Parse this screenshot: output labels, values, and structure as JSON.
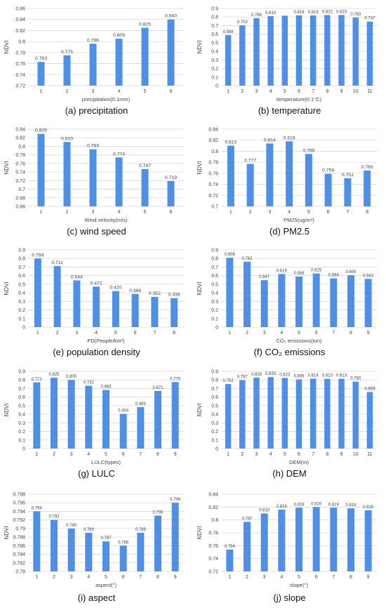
{
  "colors": {
    "bar": "#4f8fe6",
    "grid": "#d9d9d9",
    "text": "#444444"
  },
  "chart_data": [
    {
      "type": "bar",
      "caption": "(a) precipitation",
      "ylabel": "NDVI",
      "xlabel": "precipitation(0.1mm)",
      "categories": [
        "1",
        "2",
        "3",
        "4",
        "5",
        "6"
      ],
      "values": [
        0.763,
        0.775,
        0.796,
        0.805,
        0.825,
        0.84
      ],
      "value_labels": [
        "0.763",
        "0.775",
        "0.796",
        "0.805",
        "0.825",
        "0.840"
      ],
      "ylim": [
        0.72,
        0.86
      ],
      "yticks": [
        "0.72",
        "0.74",
        "0.76",
        "0.78",
        "0.8",
        "0.82",
        "0.84",
        "0.86"
      ],
      "grid": true
    },
    {
      "type": "bar",
      "caption": "(b) temperature",
      "ylabel": "NDVI",
      "xlabel": "temperature(0.1°C)",
      "categories": [
        "1",
        "2",
        "3",
        "4",
        "5",
        "6",
        "7",
        "8",
        "9",
        "10",
        "11"
      ],
      "values": [
        0.588,
        0.703,
        0.786,
        0.81,
        0.815,
        0.819,
        0.819,
        0.822,
        0.823,
        0.793,
        0.747
      ],
      "value_labels": [
        "0.588",
        "0.703",
        "0.786",
        "0.810",
        "",
        "0.819",
        "0.819",
        "0.822",
        "0.823",
        "0.793",
        "0.747"
      ],
      "ylim": [
        0,
        0.9
      ],
      "yticks": [
        "0",
        "0.1",
        "0.2",
        "0.3",
        "0.4",
        "0.5",
        "0.6",
        "0.7",
        "0.8",
        "0.9"
      ],
      "grid": true
    },
    {
      "type": "bar",
      "caption": "(c) wind speed",
      "ylabel": "NDVI",
      "xlabel": "Wind velocity(m/s)",
      "categories": [
        "1",
        "2",
        "3",
        "4",
        "5",
        "6"
      ],
      "values": [
        0.829,
        0.81,
        0.793,
        0.774,
        0.747,
        0.719
      ],
      "value_labels": [
        "0.829",
        "0.810",
        "0.793",
        "0.774",
        "0.747",
        "0.719"
      ],
      "ylim": [
        0.66,
        0.84
      ],
      "yticks": [
        "0.66",
        "0.68",
        "0.7",
        "0.72",
        "0.74",
        "0.76",
        "0.78",
        "0.8",
        "0.82",
        "0.84"
      ],
      "grid": true
    },
    {
      "type": "bar",
      "caption": "(d) PM2.5",
      "ylabel": "NDVI",
      "xlabel": "PM25(ug/m³)",
      "categories": [
        "1",
        "2",
        "3",
        "4",
        "5",
        "6",
        "7",
        "8"
      ],
      "values": [
        0.81,
        0.777,
        0.814,
        0.818,
        0.795,
        0.759,
        0.751,
        0.765
      ],
      "value_labels": [
        "0.810",
        "0.777",
        "0.814",
        "0.818",
        "0.795",
        "0.759",
        "0.751",
        "0.765"
      ],
      "ylim": [
        0.7,
        0.84
      ],
      "yticks": [
        "0.7",
        "0.72",
        "0.74",
        "0.76",
        "0.78",
        "0.8",
        "0.82",
        "0.84"
      ],
      "grid": true
    },
    {
      "type": "bar",
      "caption": "(e) population density",
      "ylabel": "NDVI",
      "xlabel": "PD(People/km²)",
      "categories": [
        "1",
        "2",
        "3",
        "4",
        "5",
        "6",
        "7",
        "8"
      ],
      "values": [
        0.799,
        0.711,
        0.544,
        0.472,
        0.42,
        0.386,
        0.352,
        0.338
      ],
      "value_labels": [
        "0.799",
        "0.711",
        "0.544",
        "0.472",
        "0.420",
        "0.386",
        "0.352",
        "0.338"
      ],
      "ylim": [
        0,
        0.9
      ],
      "yticks": [
        "0",
        "0.1",
        "0.2",
        "0.3",
        "0.4",
        "0.5",
        "0.6",
        "0.7",
        "0.8",
        "0.9"
      ],
      "grid": true
    },
    {
      "type": "bar",
      "caption": "(f) CO₂ emissions",
      "ylabel": "NDVI",
      "xlabel": "CO₂ emissions(ton)",
      "categories": [
        "1",
        "2",
        "3",
        "4",
        "5",
        "6",
        "7",
        "8",
        "9"
      ],
      "values": [
        0.808,
        0.762,
        0.547,
        0.619,
        0.589,
        0.625,
        0.568,
        0.605,
        0.562
      ],
      "value_labels": [
        "0.808",
        "0.762",
        "0.547",
        "0.619",
        "0.589",
        "0.625",
        "0.568",
        "0.605",
        "0.562"
      ],
      "ylim": [
        0,
        0.9
      ],
      "yticks": [
        "0",
        "0.1",
        "0.2",
        "0.3",
        "0.4",
        "0.5",
        "0.6",
        "0.7",
        "0.8",
        "0.9"
      ],
      "grid": true
    },
    {
      "type": "bar",
      "caption": "(g) LULC",
      "ylabel": "NDVI",
      "xlabel": "LULC(types)",
      "categories": [
        "1",
        "2",
        "3",
        "4",
        "5",
        "6",
        "7",
        "8",
        "9"
      ],
      "values": [
        0.771,
        0.825,
        0.8,
        0.732,
        0.683,
        0.404,
        0.483,
        0.671,
        0.775
      ],
      "value_labels": [
        "0.771",
        "0.825",
        "0.800",
        "0.732",
        "0.683",
        "0.404",
        "0.483",
        "0.671",
        "0.775"
      ],
      "ylim": [
        0,
        0.9
      ],
      "yticks": [
        "0",
        "0.1",
        "0.2",
        "0.3",
        "0.4",
        "0.5",
        "0.6",
        "0.7",
        "0.8",
        "0.9"
      ],
      "grid": true
    },
    {
      "type": "bar",
      "caption": "(h) DEM",
      "ylabel": "NDVI",
      "xlabel": "DEM(m)",
      "categories": [
        "1",
        "2",
        "3",
        "4",
        "5",
        "6",
        "7",
        "8",
        "9",
        "10",
        "11"
      ],
      "values": [
        0.752,
        0.797,
        0.826,
        0.833,
        0.823,
        0.806,
        0.814,
        0.813,
        0.813,
        0.78,
        0.659
      ],
      "value_labels": [
        "0.752",
        "0.797",
        "0.826",
        "0.833",
        "0.823",
        "0.806",
        "0.814",
        "0.813",
        "0.813",
        "0.780",
        "0.659"
      ],
      "ylim": [
        0,
        0.9
      ],
      "yticks": [
        "0",
        "0.1",
        "0.2",
        "0.3",
        "0.4",
        "0.5",
        "0.6",
        "0.7",
        "0.8",
        "0.9"
      ],
      "grid": true
    },
    {
      "type": "bar",
      "caption": "(i) aspect",
      "ylabel": "NDVI",
      "xlabel": "aspect(°)",
      "categories": [
        "1",
        "2",
        "3",
        "4",
        "5",
        "6",
        "7",
        "8",
        "9"
      ],
      "values": [
        0.794,
        0.792,
        0.79,
        0.789,
        0.787,
        0.786,
        0.789,
        0.793,
        0.796
      ],
      "value_labels": [
        "0.794",
        "0.792",
        "0.790",
        "0.789",
        "0.787",
        "0.786",
        "0.789",
        "0.793",
        "0.796"
      ],
      "ylim": [
        0.78,
        0.798
      ],
      "yticks": [
        "0.78",
        "0.782",
        "0.784",
        "0.786",
        "0.788",
        "0.79",
        "0.792",
        "0.794",
        "0.796",
        "0.798"
      ],
      "grid": true
    },
    {
      "type": "bar",
      "caption": "(j) slope",
      "ylabel": "NDVI",
      "xlabel": "slope(°)",
      "categories": [
        "1",
        "2",
        "3",
        "4",
        "5",
        "6",
        "7",
        "8",
        "9"
      ],
      "values": [
        0.754,
        0.797,
        0.81,
        0.816,
        0.819,
        0.82,
        0.819,
        0.818,
        0.815
      ],
      "value_labels": [
        "0.754",
        "0.797",
        "0.810",
        "0.816",
        "0.819",
        "0.820",
        "0.819",
        "0.818",
        "0.815"
      ],
      "ylim": [
        0.72,
        0.84
      ],
      "yticks": [
        "0.72",
        "0.74",
        "0.76",
        "0.78",
        "0.8",
        "0.82",
        "0.84"
      ],
      "grid": true
    }
  ]
}
